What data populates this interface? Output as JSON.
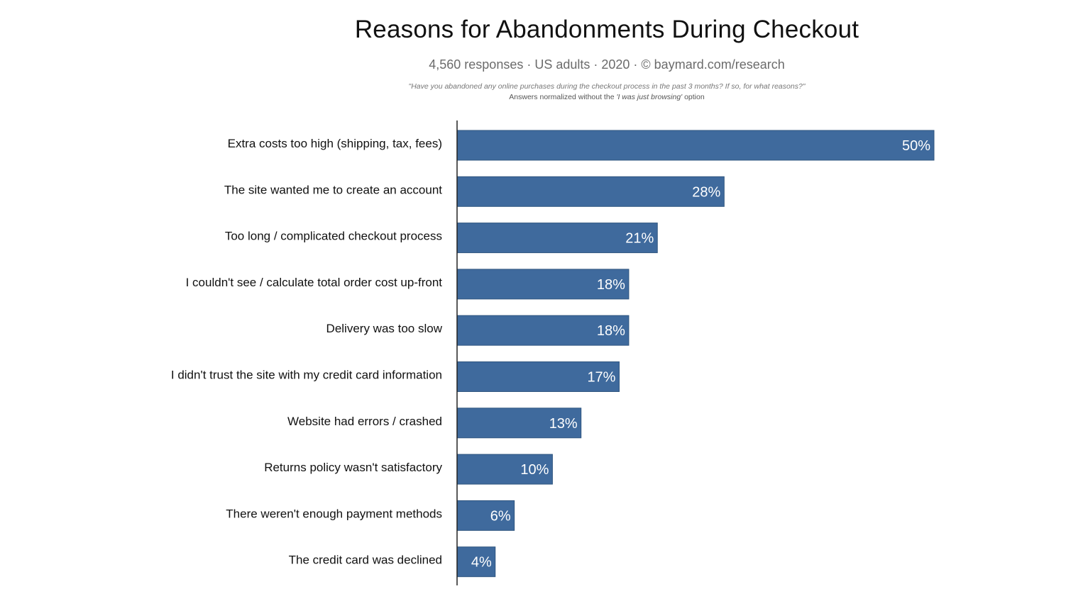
{
  "title": "Reasons for Abandonments During Checkout",
  "subtitle": "4,560 responses  ·  US adults  ·  2020  ·  ©  baymard.com/research",
  "question": "\"Have you abandoned any online purchases during the checkout process in the past 3 months? If so, for what reasons?\"",
  "note": {
    "prefix": "Answers normalized without the ",
    "emphasis": "'I was just browsing'",
    "suffix": " option"
  },
  "colors": {
    "bar": "#3f6a9d",
    "bar_edge": "#2f557f",
    "axis": "#222222"
  },
  "chart_data": {
    "type": "bar",
    "orientation": "horizontal",
    "categories": [
      "Extra costs too high (shipping, tax, fees)",
      "The site wanted me to create an account",
      "Too long / complicated checkout process",
      "I couldn't see / calculate total order cost up-front",
      "Delivery was too slow",
      "I didn't trust the site with my credit card information",
      "Website had errors / crashed",
      "Returns policy wasn't satisfactory",
      "There weren't enough payment methods",
      "The credit card was declined"
    ],
    "values": [
      50,
      28,
      21,
      18,
      18,
      17,
      13,
      10,
      6,
      4
    ],
    "value_labels": [
      "50%",
      "28%",
      "21%",
      "18%",
      "18%",
      "17%",
      "13%",
      "10%",
      "6%",
      "4%"
    ],
    "unit": "%",
    "xlim": [
      0,
      50
    ],
    "grid": false,
    "legend": "none"
  }
}
